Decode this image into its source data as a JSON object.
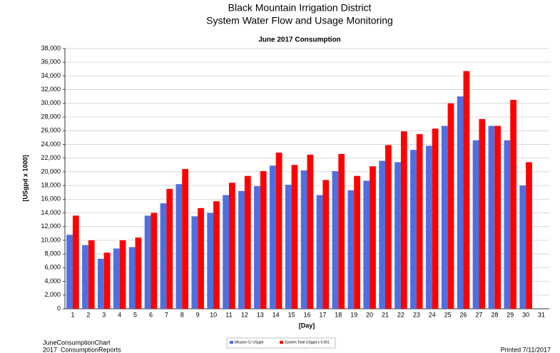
{
  "header": {
    "title": "Black Mountain Irrigation District",
    "subtitle": "System Water Flow and Usage Monitoring"
  },
  "chart_data": {
    "type": "bar",
    "title": "June 2017 Consumption",
    "x_label": "[Day]",
    "y_label": "[USgpd x 1000]",
    "categories": [
      "1",
      "2",
      "3",
      "4",
      "5",
      "6",
      "7",
      "8",
      "9",
      "10",
      "11",
      "12",
      "13",
      "14",
      "15",
      "16",
      "17",
      "18",
      "19",
      "20",
      "21",
      "22",
      "23",
      "24",
      "25",
      "26",
      "27",
      "28",
      "29",
      "30",
      "31"
    ],
    "series": [
      {
        "name": "Mission Cr USgpd",
        "color": "#4f6fe0",
        "values": [
          10800,
          9300,
          7300,
          8800,
          9000,
          13600,
          15400,
          18200,
          13500,
          14000,
          16600,
          17200,
          17900,
          20900,
          18100,
          20200,
          16600,
          20100,
          17300,
          18700,
          21600,
          21400,
          23200,
          23800,
          26700,
          31000,
          24600,
          26700,
          24600,
          18000,
          null
        ]
      },
      {
        "name": "System Total USgpd x 0.001",
        "color": "#ff0000",
        "values": [
          13600,
          10000,
          8200,
          10000,
          10400,
          14000,
          17500,
          20400,
          14700,
          15700,
          18400,
          19400,
          20100,
          22800,
          21000,
          22500,
          18800,
          22600,
          19400,
          20800,
          23900,
          25900,
          25500,
          26300,
          30000,
          34700,
          27700,
          26700,
          30500,
          21400,
          null
        ]
      }
    ],
    "ylim": [
      0,
      38000
    ],
    "yticks": [
      0,
      {
        "value": 2000,
        "label": "2,000"
      },
      {
        "value": 4000,
        "label": "4,000"
      },
      {
        "value": 6000,
        "label": "6,000"
      },
      {
        "value": 8000,
        "label": "8,000"
      },
      {
        "value": 10000,
        "label": "10,000"
      },
      {
        "value": 12000,
        "label": "12,000"
      },
      {
        "value": 14000,
        "label": "14,000"
      },
      {
        "value": 16000,
        "label": "16,000"
      },
      {
        "value": 18000,
        "label": "18,000"
      },
      {
        "value": 20000,
        "label": "20,000"
      },
      {
        "value": 22000,
        "label": "22,000"
      },
      {
        "value": 24000,
        "label": "24,000"
      },
      {
        "value": 26000,
        "label": "26,000"
      },
      {
        "value": 28000,
        "label": "28,000"
      },
      {
        "value": 30000,
        "label": "30,000"
      },
      {
        "value": 32000,
        "label": "32,000"
      },
      {
        "value": 34000,
        "label": "34,000"
      },
      {
        "value": 36000,
        "label": "36,000"
      },
      {
        "value": 38000,
        "label": "38,000"
      }
    ],
    "grid": true,
    "legend": "bottom"
  },
  "footer": {
    "left_1": "JuneConsumptionChart",
    "left_2": "2017_ConsumptionReports",
    "right": "Printed 7/11/2017"
  }
}
